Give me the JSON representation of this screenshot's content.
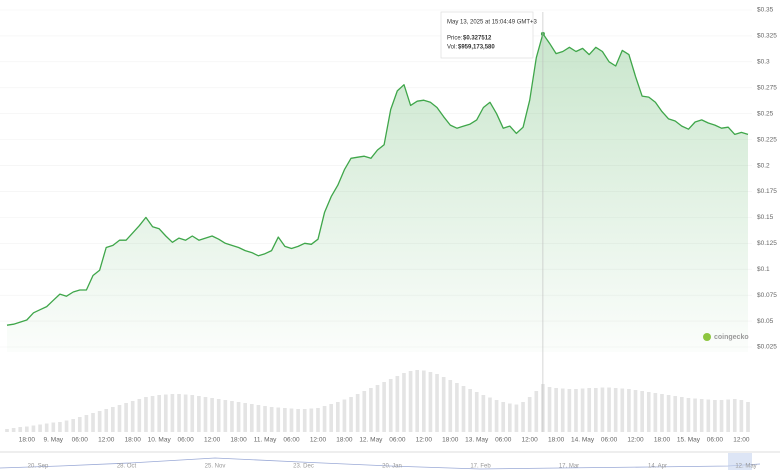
{
  "chart_data": {
    "type": "line",
    "categories": [
      null,
      null,
      null,
      "18:00",
      null,
      null,
      null,
      "9. May",
      null,
      null,
      null,
      "06:00",
      null,
      null,
      null,
      "12:00",
      null,
      null,
      null,
      "18:00",
      null,
      null,
      null,
      "10. May",
      null,
      null,
      null,
      "06:00",
      null,
      null,
      null,
      "12:00",
      null,
      null,
      null,
      "18:00",
      null,
      null,
      null,
      "11. May",
      null,
      null,
      null,
      "06:00",
      null,
      null,
      null,
      "12:00",
      null,
      null,
      null,
      "18:00",
      null,
      null,
      null,
      "12. May",
      null,
      null,
      null,
      "06:00",
      null,
      null,
      null,
      "12:00",
      null,
      null,
      null,
      "18:00",
      null,
      null,
      null,
      "13. May",
      null,
      null,
      null,
      "06:00",
      null,
      null,
      null,
      "12:00",
      null,
      null,
      null,
      "18:00",
      null,
      null,
      null,
      "14. May",
      null,
      null,
      null,
      "06:00",
      null,
      null,
      null,
      "12:00",
      null,
      null,
      null,
      "18:00",
      null,
      null,
      null,
      "15. May",
      null,
      null,
      null,
      "06:00",
      null,
      null,
      null,
      "12:00",
      null
    ],
    "series": [
      {
        "color": "#3fa64a",
        "values": [
          0.046,
          0.047,
          0.049,
          0.051,
          0.058,
          0.061,
          0.064,
          0.07,
          0.076,
          0.074,
          0.078,
          0.08,
          0.08,
          0.094,
          0.099,
          0.121,
          0.123,
          0.128,
          0.128,
          0.135,
          0.142,
          0.15,
          0.141,
          0.139,
          0.132,
          0.126,
          0.13,
          0.128,
          0.132,
          0.128,
          0.13,
          0.132,
          0.129,
          0.125,
          0.123,
          0.121,
          0.118,
          0.116,
          0.113,
          0.115,
          0.118,
          0.131,
          0.122,
          0.12,
          0.122,
          0.125,
          0.124,
          0.129,
          0.155,
          0.17,
          0.181,
          0.196,
          0.207,
          0.208,
          0.209,
          0.207,
          0.215,
          0.22,
          0.254,
          0.272,
          0.278,
          0.258,
          0.262,
          0.263,
          0.261,
          0.256,
          0.247,
          0.239,
          0.236,
          0.238,
          0.24,
          0.244,
          0.256,
          0.261,
          0.25,
          0.236,
          0.238,
          0.231,
          0.237,
          0.263,
          0.304,
          0.327,
          0.318,
          0.308,
          0.31,
          0.314,
          0.31,
          0.313,
          0.307,
          0.314,
          0.31,
          0.3,
          0.296,
          0.311,
          0.307,
          0.286,
          0.267,
          0.266,
          0.261,
          0.252,
          0.245,
          0.243,
          0.238,
          0.235,
          0.242,
          0.244,
          0.241,
          0.239,
          0.236,
          0.237,
          0.23,
          0.232,
          0.23
        ]
      },
      {
        "type": "bar",
        "axis": "y2",
        "color": "#e4e4e4",
        "values": [
          60000000,
          80000000,
          100000000,
          110000000,
          130000000,
          150000000,
          170000000,
          190000000,
          200000000,
          230000000,
          260000000,
          300000000,
          340000000,
          380000000,
          420000000,
          460000000,
          500000000,
          540000000,
          580000000,
          620000000,
          660000000,
          700000000,
          720000000,
          740000000,
          750000000,
          760000000,
          760000000,
          750000000,
          740000000,
          720000000,
          700000000,
          680000000,
          660000000,
          640000000,
          620000000,
          600000000,
          580000000,
          560000000,
          540000000,
          520000000,
          500000000,
          490000000,
          480000000,
          470000000,
          460000000,
          460000000,
          470000000,
          480000000,
          520000000,
          560000000,
          600000000,
          650000000,
          700000000,
          760000000,
          820000000,
          880000000,
          940000000,
          1000000000,
          1060000000,
          1120000000,
          1180000000,
          1220000000,
          1240000000,
          1230000000,
          1200000000,
          1160000000,
          1100000000,
          1040000000,
          980000000,
          920000000,
          860000000,
          800000000,
          740000000,
          690000000,
          640000000,
          600000000,
          570000000,
          550000000,
          600000000,
          700000000,
          820000000,
          959173580,
          900000000,
          880000000,
          870000000,
          860000000,
          860000000,
          870000000,
          880000000,
          880000000,
          890000000,
          890000000,
          880000000,
          870000000,
          860000000,
          840000000,
          820000000,
          800000000,
          780000000,
          760000000,
          740000000,
          720000000,
          700000000,
          680000000,
          670000000,
          660000000,
          650000000,
          640000000,
          640000000,
          650000000,
          660000000,
          640000000,
          600000000
        ]
      }
    ],
    "ylim": [
      0.025,
      0.35
    ],
    "yticks": [
      {
        "value": 0.35,
        "label": "$0.35"
      },
      {
        "value": 0.325,
        "label": "$0.325"
      },
      {
        "value": 0.3,
        "label": "$0.3"
      },
      {
        "value": 0.275,
        "label": "$0.275"
      },
      {
        "value": 0.25,
        "label": "$0.25"
      },
      {
        "value": 0.225,
        "label": "$0.225"
      },
      {
        "value": 0.2,
        "label": "$0.2"
      },
      {
        "value": 0.175,
        "label": "$0.175"
      },
      {
        "value": 0.15,
        "label": "$0.15"
      },
      {
        "value": 0.125,
        "label": "$0.125"
      },
      {
        "value": 0.1,
        "label": "$0.1"
      },
      {
        "value": 0.075,
        "label": "$0.075"
      },
      {
        "value": 0.05,
        "label": "$0.05"
      },
      {
        "value": 0.025,
        "label": "$0.025"
      }
    ],
    "y2lim": [
      0,
      1600000000
    ],
    "grid": true
  },
  "tooltip": {
    "date": "May 13, 2025 at 15:04:49 GMT+3",
    "price_label": "Price:",
    "price": "$0.327512",
    "vol_label": "Vol:",
    "vol": "$959,173,580"
  },
  "watermark": "coingecko",
  "navigator": {
    "labels": [
      "20. Sep",
      "28. Oct",
      "25. Nov",
      "23. Dec",
      "20. Jan",
      "17. Feb",
      "17. Mar",
      "14. Apr",
      "12. May"
    ]
  }
}
